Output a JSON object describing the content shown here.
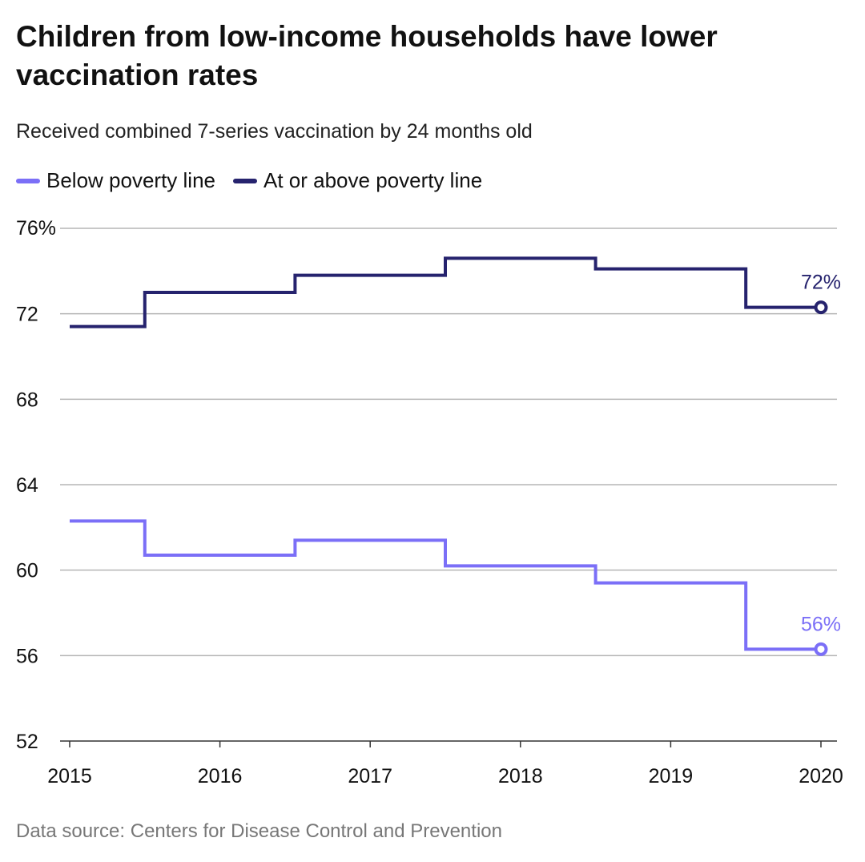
{
  "title": "Children from low-income households have lower vaccination rates",
  "subtitle": "Received combined 7-series vaccination by 24 months old",
  "source": "Data source: Centers for Disease Control and Prevention",
  "chart_data": {
    "type": "line",
    "step": "center",
    "title": "Children from low-income households have lower vaccination rates",
    "subtitle": "Received combined 7-series vaccination by 24 months old",
    "x": [
      2015,
      2016,
      2017,
      2018,
      2019,
      2020
    ],
    "x_tick_labels": [
      "2015",
      "2016",
      "2017",
      "2018",
      "2019",
      "2020"
    ],
    "y_tick_labels": [
      "76%",
      "72",
      "68",
      "64",
      "60",
      "56",
      "52"
    ],
    "y_ticks": [
      76,
      72,
      68,
      64,
      60,
      56,
      52
    ],
    "ylim": [
      52,
      76
    ],
    "grid": "horizontal",
    "legend": "top-left",
    "series": [
      {
        "name": "Below poverty line",
        "color": "#7b6ff7",
        "values": [
          62.3,
          60.7,
          61.4,
          60.2,
          59.4,
          56.3
        ],
        "end_label": "56%"
      },
      {
        "name": "At or above poverty line",
        "color": "#26236e",
        "values": [
          71.4,
          73.0,
          73.8,
          74.6,
          74.1,
          72.3
        ],
        "end_label": "72%"
      }
    ]
  }
}
